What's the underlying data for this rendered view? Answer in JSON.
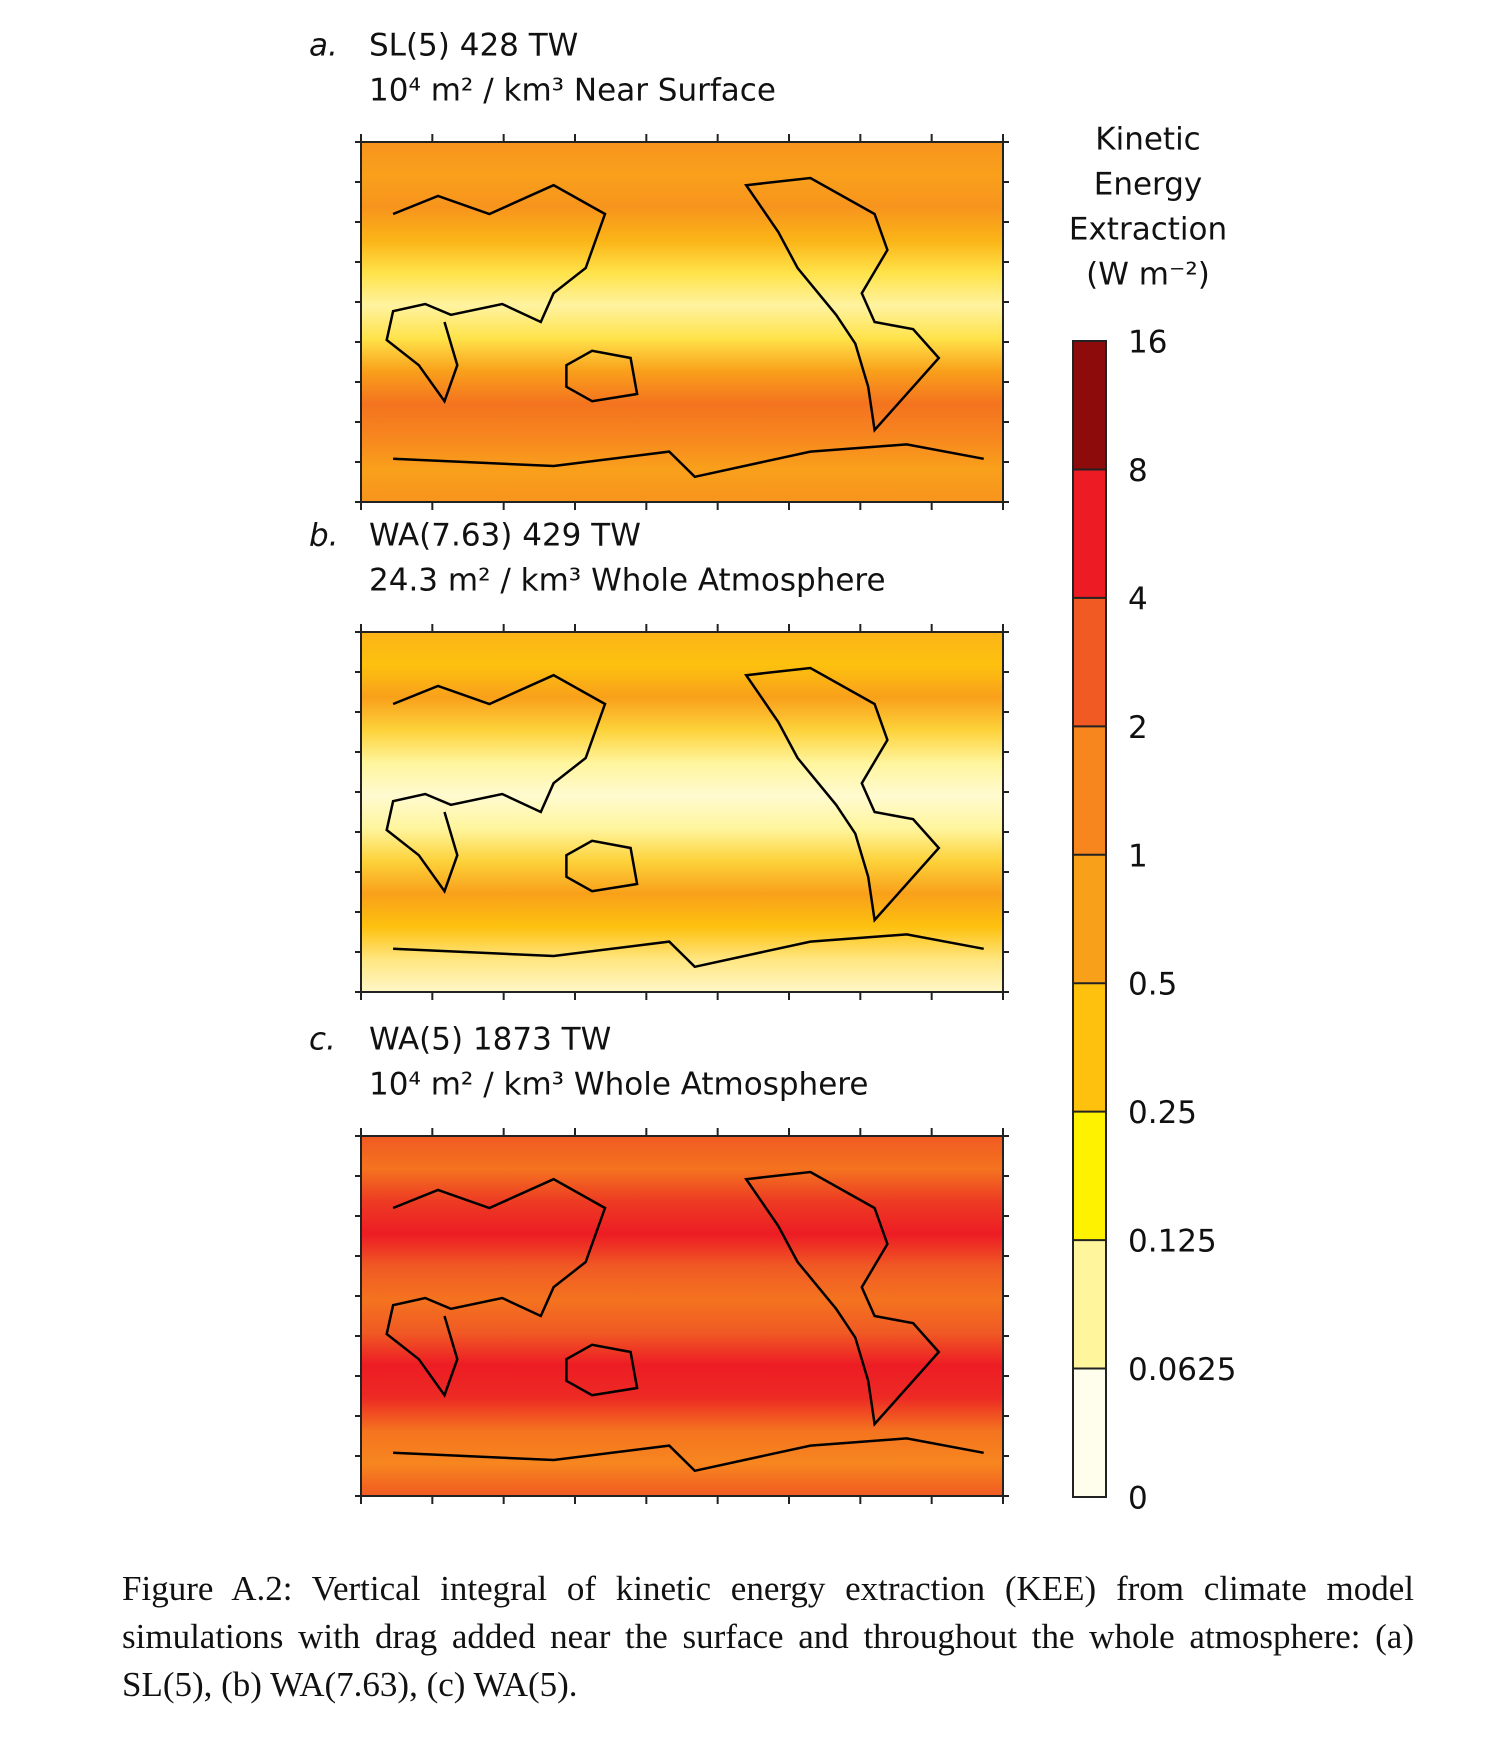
{
  "panels": [
    {
      "label": "a.",
      "title": "SL(5) 428  TW",
      "subtitle": "10⁴ m² / km³ Near Surface"
    },
    {
      "label": "b.",
      "title": "WA(7.63)  429  TW",
      "subtitle": "24.3 m² / km³ Whole Atmosphere"
    },
    {
      "label": "c.",
      "title": "WA(5) 1873 TW",
      "subtitle": "10⁴ m² / km³ Whole Atmosphere"
    }
  ],
  "colorbar": {
    "title": [
      "Kinetic",
      "Energy",
      "Extraction",
      "(W m⁻²)"
    ],
    "ticks": [
      16,
      8,
      4,
      2,
      1,
      0.5,
      0.25,
      0.125,
      0.0625,
      0
    ],
    "colors": [
      "#8e0b0b",
      "#ed1c24",
      "#f15a22",
      "#f7861f",
      "#f9a01b",
      "#fdc10e",
      "#fff200",
      "#fff59d",
      "#fffdeb"
    ]
  },
  "caption": "Figure A.2: Vertical integral of kinetic energy extraction (KEE) from climate model simulations with drag added near the surface and throughout the whole atmosphere: (a) SL(5), (b) WA(7.63), (c) WA(5)."
}
